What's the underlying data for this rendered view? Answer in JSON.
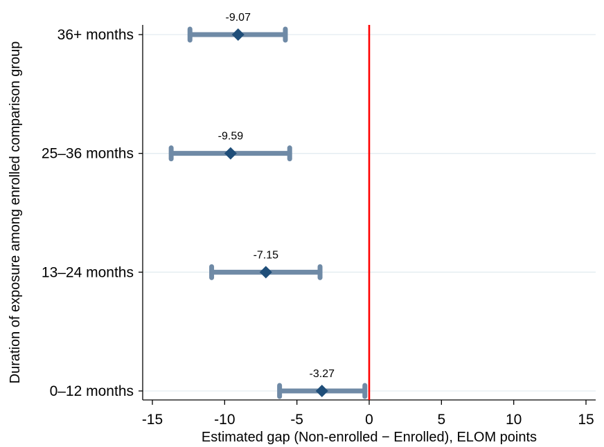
{
  "chart_data": {
    "type": "scatter",
    "title": "",
    "xlabel": "Estimated gap (Non-enrolled − Enrolled), ELOM points",
    "ylabel": "Duration of exposure among enrolled comparison group",
    "xlim": [
      -15,
      15
    ],
    "xticks": [
      -15,
      -10,
      -5,
      0,
      5,
      10,
      15
    ],
    "xtick_labels": [
      "-15",
      "-10",
      "-5",
      "0",
      "5",
      "10",
      "15"
    ],
    "reference_line": {
      "x": 0,
      "color": "#ff0000"
    },
    "grid": "horizontal",
    "categories": [
      "0–12 months",
      "13–24 months",
      "25–36 months",
      "36+ months"
    ],
    "estimates": [
      -3.27,
      -7.15,
      -9.59,
      -9.07
    ],
    "labels": [
      "-3.27",
      "-7.15",
      "-9.59",
      "-9.07"
    ],
    "ci_low": [
      -6.2,
      -10.9,
      -13.7,
      -12.4
    ],
    "ci_high": [
      -0.3,
      -3.4,
      -5.5,
      -5.8
    ],
    "marker_color": "#1f4e79",
    "ci_color": "#6f8aa6",
    "grid_color": "#e3ecf0"
  }
}
